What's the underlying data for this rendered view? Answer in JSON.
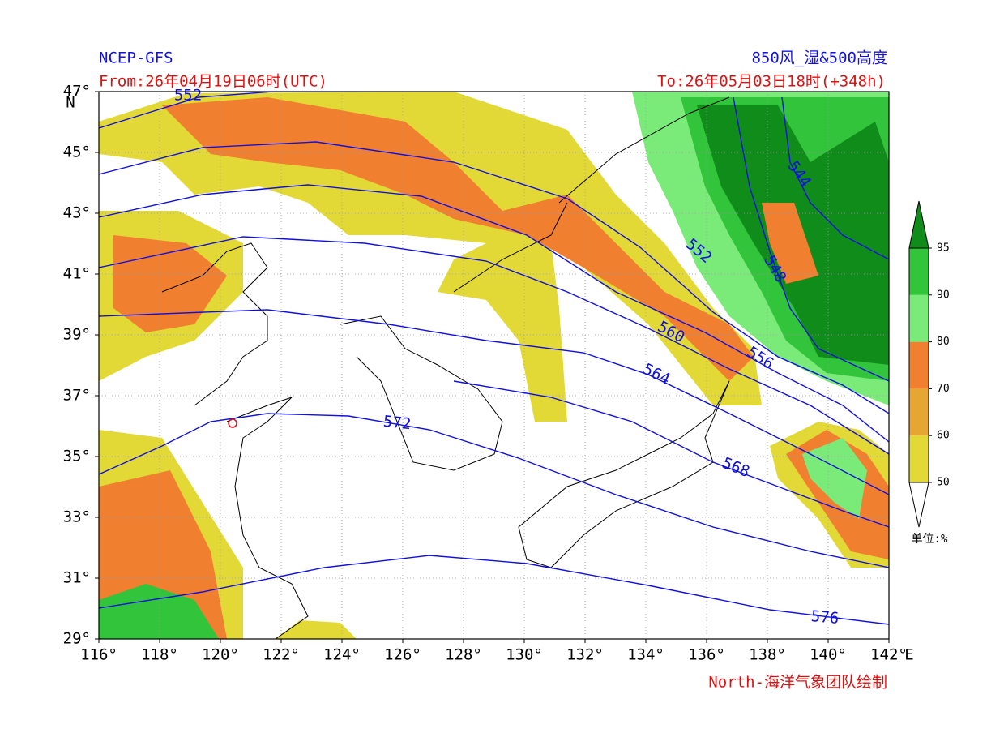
{
  "header": {
    "source": "NCEP-GFS",
    "product": "850风_湿&500高度",
    "from": "From:26年04月19日06时(UTC)",
    "to": "To:26年05月03日18时(+348h)"
  },
  "map": {
    "lon_range": [
      116,
      142
    ],
    "lat_range": [
      29,
      47
    ],
    "x_ticks": [
      {
        "value": 116,
        "label": "116°"
      },
      {
        "value": 118,
        "label": "118°"
      },
      {
        "value": 120,
        "label": "120°"
      },
      {
        "value": 122,
        "label": "122°"
      },
      {
        "value": 124,
        "label": "124°"
      },
      {
        "value": 126,
        "label": "126°"
      },
      {
        "value": 128,
        "label": "128°"
      },
      {
        "value": 130,
        "label": "130°"
      },
      {
        "value": 132,
        "label": "132°"
      },
      {
        "value": 134,
        "label": "134°"
      },
      {
        "value": 136,
        "label": "136°"
      },
      {
        "value": 138,
        "label": "138°"
      },
      {
        "value": 140,
        "label": "140°"
      },
      {
        "value": 142,
        "label": "142°"
      }
    ],
    "x_unit": "E",
    "y_ticks": [
      {
        "value": 29,
        "label": "29°"
      },
      {
        "value": 31,
        "label": "31°"
      },
      {
        "value": 33,
        "label": "33°"
      },
      {
        "value": 35,
        "label": "35°"
      },
      {
        "value": 37,
        "label": "37°"
      },
      {
        "value": 39,
        "label": "39°"
      },
      {
        "value": 41,
        "label": "41°"
      },
      {
        "value": 43,
        "label": "43°"
      },
      {
        "value": 45,
        "label": "45°"
      },
      {
        "value": 47,
        "label": "47°"
      }
    ],
    "y_unit": "N",
    "contour_labels": [
      "552",
      "544",
      "548",
      "552",
      "556",
      "560",
      "564",
      "568",
      "572",
      "576"
    ]
  },
  "colorbar": {
    "levels": [
      50,
      60,
      70,
      80,
      90,
      95
    ],
    "colors": [
      "#e3d936",
      "#e6a634",
      "#f08030",
      "#7aea78",
      "#32c43a",
      "#0f8c1a"
    ],
    "unit": "单位:%"
  },
  "credit": "North-海洋气象团队绘制"
}
